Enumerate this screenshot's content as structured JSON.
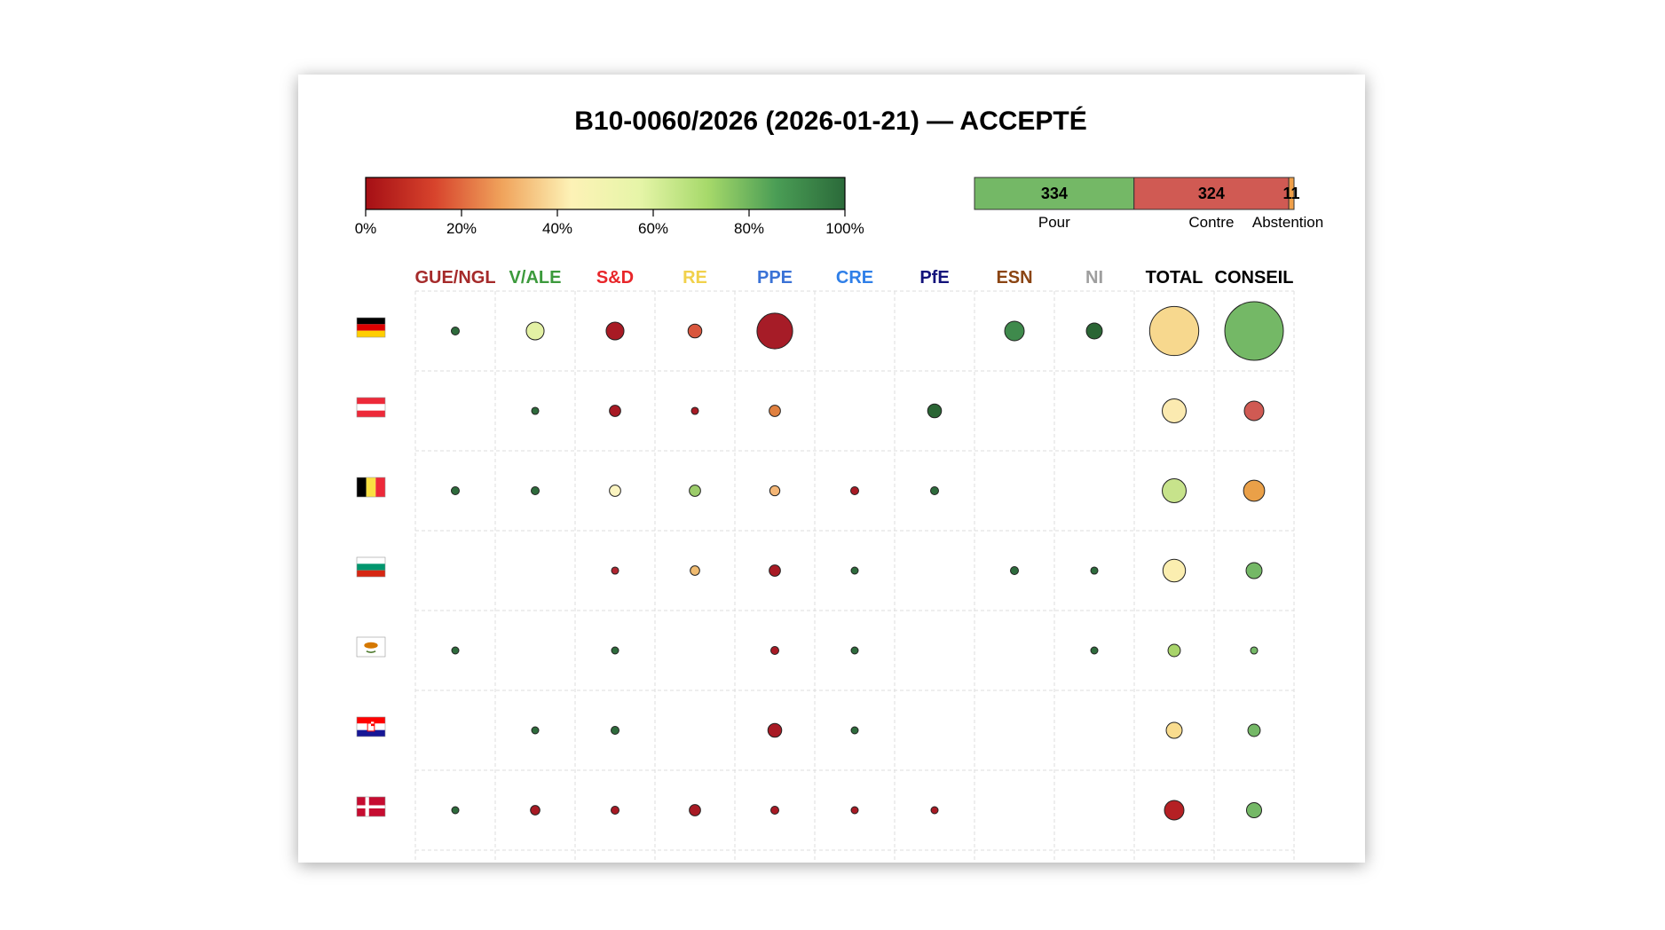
{
  "chart_data": {
    "type": "bubble-matrix",
    "title": "B10-0060/2026 (2026-01-21) — ACCEPTÉ",
    "colorbar": {
      "ticks": [
        "0%",
        "20%",
        "40%",
        "60%",
        "80%",
        "100%"
      ],
      "colors": [
        "#a50f15",
        "#d7432c",
        "#f0a45c",
        "#fdf2b6",
        "#e6f5a8",
        "#a6d96a",
        "#4a9d55",
        "#2b6a3a"
      ]
    },
    "vote_bar": {
      "segments": [
        {
          "value": 334,
          "label": "334",
          "name": "Pour",
          "color": "#74b866"
        },
        {
          "value": 324,
          "label": "324",
          "name": "Contre",
          "color": "#d05a53"
        },
        {
          "value": 11,
          "label": "11",
          "name": "Abstention",
          "color": "#f0a049"
        }
      ]
    },
    "columns": [
      {
        "label": "GUE/NGL",
        "color": "#a52a2a"
      },
      {
        "label": "V/ALE",
        "color": "#3c9a3c"
      },
      {
        "label": "S&D",
        "color": "#e8262a"
      },
      {
        "label": "RE",
        "color": "#f1d14b"
      },
      {
        "label": "PPE",
        "color": "#3a72d6"
      },
      {
        "label": "CRE",
        "color": "#2f7fe8"
      },
      {
        "label": "PfE",
        "color": "#12127a"
      },
      {
        "label": "ESN",
        "color": "#8b4513"
      },
      {
        "label": "NI",
        "color": "#9e9e9e"
      },
      {
        "label": "TOTAL",
        "color": "#000000"
      },
      {
        "label": "CONSEIL",
        "color": "#000000"
      }
    ],
    "rows": [
      {
        "flag": "germany-flag",
        "cells": [
          {
            "size": 1,
            "color": "#2e6b3c"
          },
          {
            "size": 5,
            "color": "#e3f1a4"
          },
          {
            "size": 5,
            "color": "#a81a24"
          },
          {
            "size": 3,
            "color": "#d9563d"
          },
          {
            "size": 20,
            "color": "#a61c27"
          },
          null,
          null,
          {
            "size": 6,
            "color": "#3f8a4c"
          },
          {
            "size": 4,
            "color": "#2a6534"
          },
          {
            "size": 38,
            "color": "#f7d88e"
          },
          {
            "size": 54,
            "color": "#74b866"
          }
        ]
      },
      {
        "flag": "austria-flag",
        "cells": [
          null,
          {
            "size": 0.8,
            "color": "#2e6b3c"
          },
          {
            "size": 2,
            "color": "#a81a24"
          },
          {
            "size": 0.8,
            "color": "#a81a24"
          },
          {
            "size": 2,
            "color": "#e0803f"
          },
          null,
          {
            "size": 3,
            "color": "#2a6534"
          },
          null,
          null,
          {
            "size": 9,
            "color": "#fbeab0"
          },
          {
            "size": 6,
            "color": "#d05a53"
          }
        ]
      },
      {
        "flag": "belgium-flag",
        "cells": [
          {
            "size": 1,
            "color": "#2e6b3c"
          },
          {
            "size": 1,
            "color": "#2e6b3c"
          },
          {
            "size": 2,
            "color": "#fbf4c0"
          },
          {
            "size": 2,
            "color": "#9ccc6a"
          },
          {
            "size": 1.6,
            "color": "#f4b676"
          },
          {
            "size": 1,
            "color": "#a81a24"
          },
          {
            "size": 1,
            "color": "#2e6b3c"
          },
          null,
          null,
          {
            "size": 9,
            "color": "#c7e38b"
          },
          {
            "size": 7,
            "color": "#eaa048"
          }
        ]
      },
      {
        "flag": "bulgaria-flag",
        "cells": [
          null,
          null,
          {
            "size": 0.8,
            "color": "#b02530"
          },
          {
            "size": 1.4,
            "color": "#f0bb70"
          },
          {
            "size": 2,
            "color": "#a81a24"
          },
          {
            "size": 0.5,
            "color": "#2e6b3c"
          },
          null,
          {
            "size": 1,
            "color": "#2e6b3c"
          },
          {
            "size": 0.8,
            "color": "#2e6b3c"
          },
          {
            "size": 8,
            "color": "#fbeeb0"
          },
          {
            "size": 4,
            "color": "#74b866"
          }
        ]
      },
      {
        "flag": "cyprus-flag",
        "cells": [
          {
            "size": 0.5,
            "color": "#2e6b3c"
          },
          null,
          {
            "size": 0.5,
            "color": "#2e6b3c"
          },
          null,
          {
            "size": 1,
            "color": "#a81a24"
          },
          {
            "size": 0.5,
            "color": "#2e6b3c"
          },
          null,
          null,
          {
            "size": 0.5,
            "color": "#2e6b3c"
          },
          {
            "size": 2.4,
            "color": "#a8d46a"
          },
          {
            "size": 0.8,
            "color": "#74b866"
          }
        ]
      },
      {
        "flag": "croatia-flag",
        "cells": [
          null,
          {
            "size": 0.5,
            "color": "#2e6b3c"
          },
          {
            "size": 1,
            "color": "#2e6b3c"
          },
          null,
          {
            "size": 3,
            "color": "#a81a24"
          },
          {
            "size": 0.5,
            "color": "#2e6b3c"
          },
          null,
          null,
          null,
          {
            "size": 4,
            "color": "#f9dc8e"
          },
          {
            "size": 2.4,
            "color": "#74b866"
          }
        ]
      },
      {
        "flag": "denmark-flag",
        "cells": [
          {
            "size": 0.5,
            "color": "#2e6b3c"
          },
          {
            "size": 1.4,
            "color": "#a81a24"
          },
          {
            "size": 1,
            "color": "#a81a24"
          },
          {
            "size": 2,
            "color": "#a81a24"
          },
          {
            "size": 1,
            "color": "#a81a24"
          },
          {
            "size": 0.5,
            "color": "#a81a24"
          },
          {
            "size": 0.5,
            "color": "#a81a24"
          },
          null,
          null,
          {
            "size": 6,
            "color": "#b52024"
          },
          {
            "size": 3.6,
            "color": "#74b866"
          }
        ]
      }
    ]
  }
}
